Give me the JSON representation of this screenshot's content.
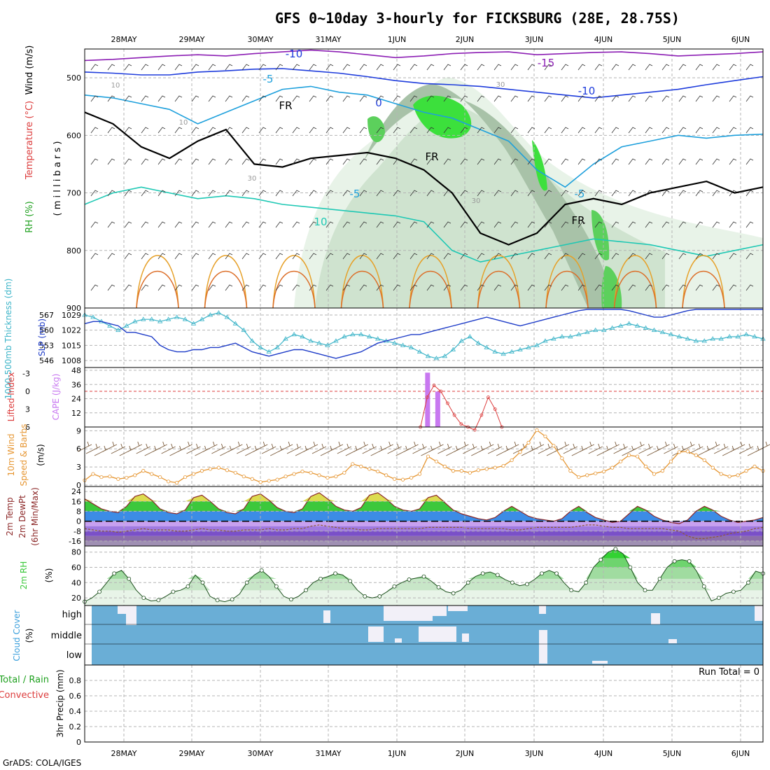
{
  "title": "GFS 0~10day 3-hourly for FICKSBURG (28E, 28.75S)",
  "credit": "GrADS: COLA/IGES",
  "colors": {
    "frame": "#000000",
    "grid": "#b4b4b4",
    "temp_cold": "#1e3cdc",
    "temp_mid": "#1ea0dc",
    "temp_cool": "#1ec8b4",
    "temp_warm": "#e6a028",
    "rh_green": "#3cdc3c",
    "thickness": "#3cb4c8",
    "slp": "#1e3cc8",
    "cape": "#c878f0",
    "lifted": "#dc3c3c",
    "wind10": "#e69632",
    "rh2m": "#3cc83c",
    "cloud": "#6aaed6",
    "cloud_clear": "#f2f0f8"
  },
  "time_axis": [
    "28MAY",
    "29MAY",
    "30MAY",
    "31MAY",
    "1JUN",
    "2JUN",
    "3JUN",
    "4JUN",
    "5JUN",
    "6JUN"
  ],
  "chart_data": [
    {
      "type": "contour",
      "name": "upper_air",
      "ylabel_parts": [
        "RH (%)",
        "Temperature (°C)",
        "Wind (m/s)"
      ],
      "ylabel_inner": "( m i l l i b a r s )",
      "yticks": [
        500,
        600,
        700,
        800,
        900
      ],
      "ylim": [
        450,
        900
      ],
      "contour_labels": [
        "-10",
        "-15",
        "-5",
        "0",
        "-10",
        "-5",
        "-5",
        "10",
        "FR",
        "FR",
        "FR",
        "10",
        "30",
        "30",
        "10",
        "30"
      ],
      "isotherm_lines": [
        {
          "level": -15,
          "p": [
            470,
            468,
            465,
            462,
            460,
            462,
            458,
            455,
            452,
            455,
            460,
            465,
            462,
            458,
            456,
            455,
            460,
            458,
            456,
            455,
            458,
            462,
            460,
            458,
            455
          ]
        },
        {
          "level": -10,
          "p": [
            490,
            492,
            495,
            495,
            490,
            488,
            485,
            484,
            488,
            492,
            498,
            505,
            510,
            512,
            515,
            520,
            525,
            530,
            535,
            530,
            525,
            520,
            512,
            505,
            498
          ]
        },
        {
          "level": -5,
          "p": [
            530,
            535,
            545,
            555,
            580,
            560,
            540,
            520,
            515,
            525,
            530,
            545,
            560,
            570,
            590,
            610,
            660,
            690,
            650,
            620,
            610,
            600,
            605,
            600,
            598
          ]
        },
        {
          "level": 10,
          "p": [
            720,
            700,
            690,
            700,
            710,
            705,
            710,
            720,
            725,
            730,
            735,
            740,
            750,
            800,
            820,
            810,
            800,
            790,
            780,
            785,
            790,
            800,
            810,
            800,
            790
          ]
        }
      ],
      "freezing_level": [
        560,
        580,
        620,
        640,
        610,
        590,
        650,
        655,
        640,
        635,
        630,
        640,
        660,
        700,
        770,
        790,
        770,
        720,
        710,
        720,
        700,
        690,
        680,
        700,
        690
      ]
    },
    {
      "type": "line",
      "name": "thickness_slp",
      "ylabel_parts": [
        "1000-500mb Thickness (dm)",
        "SLP (mb)"
      ],
      "thickness_ticks": [
        546,
        553,
        560,
        567
      ],
      "slp_ticks": [
        1008,
        1015,
        1022,
        1029
      ],
      "series": [
        {
          "name": "thickness",
          "values": [
            567,
            566,
            564,
            562,
            560,
            562,
            564,
            565,
            565,
            564,
            565,
            566,
            565,
            563,
            565,
            567,
            568,
            566,
            563,
            560,
            555,
            552,
            550,
            552,
            556,
            558,
            557,
            555,
            554,
            553,
            555,
            557,
            558,
            558,
            557,
            556,
            555,
            554,
            553,
            552,
            550,
            548,
            547,
            548,
            551,
            555,
            557,
            554,
            552,
            550,
            549,
            550,
            551,
            552,
            553,
            555,
            556,
            557,
            557,
            558,
            559,
            560,
            560,
            561,
            562,
            563,
            562,
            561,
            560,
            559,
            558,
            557,
            556,
            555,
            555,
            556,
            556,
            557,
            557,
            558,
            557,
            556
          ]
        },
        {
          "name": "slp",
          "values": [
            1025,
            1026,
            1026,
            1025,
            1024,
            1021,
            1021,
            1020,
            1019,
            1015,
            1013,
            1012,
            1012,
            1013,
            1013,
            1014,
            1014,
            1015,
            1016,
            1014,
            1012,
            1011,
            1010,
            1011,
            1012,
            1013,
            1013,
            1012,
            1011,
            1010,
            1009,
            1010,
            1011,
            1012,
            1014,
            1016,
            1017,
            1018,
            1019,
            1020,
            1020,
            1021,
            1022,
            1023,
            1024,
            1025,
            1026,
            1027,
            1028,
            1027,
            1026,
            1025,
            1024,
            1025,
            1026,
            1027,
            1028,
            1029,
            1030,
            1031,
            1032,
            1033,
            1034,
            1033,
            1032,
            1031,
            1030,
            1029,
            1028,
            1028,
            1029,
            1030,
            1031,
            1032,
            1033,
            1034,
            1034,
            1035,
            1035,
            1034,
            1034,
            1035
          ]
        }
      ]
    },
    {
      "type": "bar",
      "name": "cape_lifted",
      "ylabel_parts": [
        "Lifted Index",
        "CAPE (J/kg)"
      ],
      "cape_ticks": [
        12,
        24,
        36,
        48
      ],
      "lifted_ticks": [
        -3,
        0,
        3,
        6
      ],
      "cape_bars": [
        {
          "t": 0.505,
          "v": 46
        },
        {
          "t": 0.52,
          "v": 30
        }
      ],
      "lifted_index": {
        "t": [
          0.495,
          0.505,
          0.515,
          0.525,
          0.535,
          0.545,
          0.555,
          0.565,
          0.575,
          0.585,
          0.595,
          0.605,
          0.615
        ],
        "v": [
          6,
          1,
          -1,
          0,
          2,
          4,
          5.5,
          6,
          6.5,
          4,
          1,
          3,
          6
        ]
      }
    },
    {
      "type": "line",
      "name": "wind10m",
      "ylabel_parts": [
        "10m Wind",
        "Speed & Barbs",
        "(m/s)"
      ],
      "yticks": [
        0,
        3,
        6,
        9
      ],
      "ylim": [
        0,
        9.5
      ],
      "series": [
        {
          "name": "speed",
          "values": [
            1,
            2,
            1.5,
            1.6,
            1.2,
            1.4,
            1.8,
            2.5,
            2,
            1.5,
            0.8,
            0.6,
            1.5,
            2,
            2.5,
            2.8,
            3,
            2.6,
            2.2,
            1.6,
            1.2,
            0.7,
            0.9,
            1.1,
            1.6,
            2,
            2.4,
            2.2,
            1.8,
            1.4,
            1.6,
            2.2,
            3.6,
            3.2,
            2.8,
            2.4,
            1.8,
            1.2,
            1.1,
            1.4,
            2,
            4.8,
            4,
            3.2,
            2.5,
            2.5,
            2.2,
            2.6,
            2.8,
            3,
            3.3,
            4.2,
            5.5,
            7,
            9,
            8,
            6.5,
            4.5,
            2.5,
            1.5,
            1.8,
            2.1,
            2.4,
            3,
            4,
            5,
            4.8,
            3.2,
            2,
            2.5,
            4,
            5.5,
            5.6,
            5,
            4.2,
            3,
            2,
            1.6,
            1.8,
            2.5,
            3.2,
            2.5
          ]
        }
      ]
    },
    {
      "type": "area",
      "name": "temp2m",
      "ylabel_parts": [
        "2m Temp",
        "2m DewPt",
        "(6hr Min/Max)"
      ],
      "yticks": [
        -16,
        -8,
        0,
        8,
        16,
        24
      ],
      "ylim": [
        -20,
        28
      ],
      "series": [
        {
          "name": "temp",
          "values": [
            18,
            14,
            10,
            8,
            7,
            12,
            20,
            22,
            17,
            10,
            7,
            6,
            9,
            19,
            21,
            16,
            10,
            7,
            6,
            10,
            20,
            22,
            17,
            11,
            8,
            7,
            10,
            20,
            23,
            18,
            12,
            9,
            8,
            11,
            21,
            23,
            18,
            12,
            9,
            8,
            10,
            19,
            21,
            15,
            9,
            6,
            4,
            2,
            1,
            3,
            8,
            12,
            8,
            4,
            2,
            1,
            0,
            2,
            8,
            12,
            7,
            3,
            1,
            -1,
            0,
            6,
            12,
            9,
            4,
            1,
            -1,
            -2,
            1,
            8,
            12,
            9,
            4,
            1,
            -1,
            0,
            1,
            3
          ]
        },
        {
          "name": "dewpt",
          "values": [
            -6,
            -7,
            -8,
            -8,
            -9,
            -8,
            -7,
            -6,
            -7,
            -7,
            -7,
            -8,
            -8,
            -7,
            -6,
            -7,
            -7,
            -8,
            -8,
            -7,
            -7,
            -7,
            -6,
            -7,
            -7,
            -6,
            -6,
            -4,
            -3,
            -4,
            -5,
            -6,
            -6,
            -7,
            -7,
            -6,
            -6,
            -6,
            -6,
            -6,
            -6,
            -5,
            -5,
            -5,
            -5,
            -5,
            -6,
            -6,
            -6,
            -6,
            -6,
            -7,
            -7,
            -6,
            -5,
            -5,
            -5,
            -5,
            -5,
            -4,
            -3,
            -3,
            -4,
            -5,
            -5,
            -6,
            -6,
            -6,
            -6,
            -6,
            -7,
            -8,
            -12,
            -14,
            -14,
            -13,
            -12,
            -10,
            -9,
            -8,
            -6,
            -5
          ]
        }
      ]
    },
    {
      "type": "area",
      "name": "rh2m",
      "ylabel_parts": [
        "2m RH",
        "(%)"
      ],
      "yticks": [
        20,
        40,
        60,
        80
      ],
      "ylim": [
        10,
        88
      ],
      "series": [
        {
          "name": "rh",
          "values": [
            15,
            20,
            28,
            40,
            52,
            56,
            45,
            30,
            20,
            16,
            17,
            22,
            28,
            30,
            35,
            50,
            40,
            22,
            17,
            15,
            18,
            25,
            40,
            50,
            56,
            48,
            35,
            22,
            18,
            22,
            30,
            40,
            45,
            48,
            52,
            50,
            42,
            30,
            22,
            20,
            22,
            28,
            35,
            40,
            44,
            46,
            48,
            42,
            34,
            28,
            26,
            30,
            40,
            48,
            52,
            54,
            50,
            44,
            40,
            36,
            38,
            44,
            52,
            56,
            52,
            40,
            30,
            28,
            40,
            60,
            70,
            80,
            84,
            78,
            60,
            40,
            30,
            30,
            45,
            60,
            68,
            70,
            68,
            55,
            35,
            16,
            20,
            26,
            28,
            30,
            40,
            55,
            52
          ]
        }
      ]
    },
    {
      "type": "heatmap",
      "name": "cloud_cover",
      "ylabel_parts": [
        "Cloud Cover",
        "(%)"
      ],
      "levels": [
        "high",
        "middle",
        "low"
      ]
    },
    {
      "type": "bar",
      "name": "precip",
      "ylabel_parts": [
        "Total / Rain",
        "Convective",
        "3hr Precip (mm)"
      ],
      "yticks": [
        0,
        0.2,
        0.4,
        0.6,
        0.8
      ],
      "ylim": [
        0,
        1
      ],
      "run_total_label": "Run Total = 0",
      "values": []
    }
  ]
}
